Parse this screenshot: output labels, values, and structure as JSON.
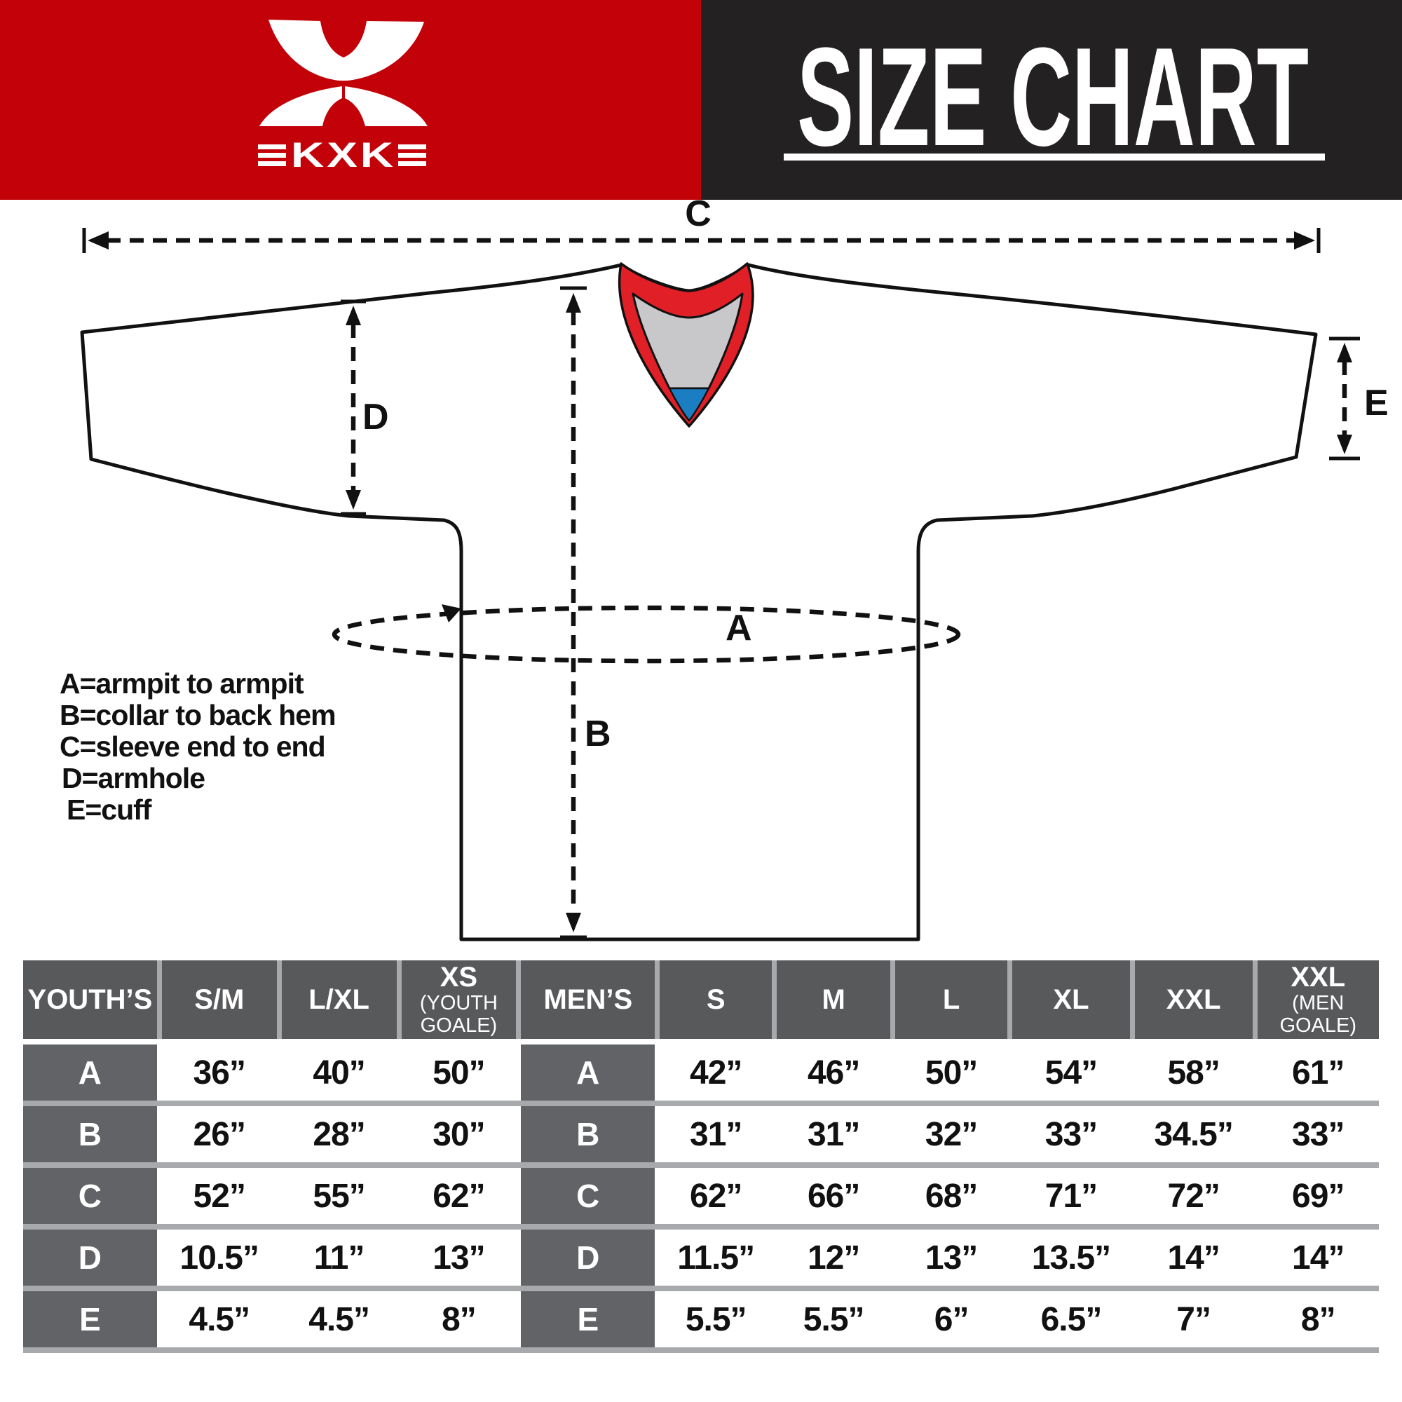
{
  "brand": {
    "logo_text": "KXK"
  },
  "title": "SIZE CHART",
  "colors": {
    "header_red": "#c30109",
    "header_black": "#232122",
    "collar_red": "#e01f26",
    "collar_gray": "#c8c8ca",
    "collar_blue": "#1b7ec2",
    "table_header_gray": "#58595b",
    "row_label_gray": "#626366",
    "separator_gray": "#a7a9ac"
  },
  "diagram": {
    "measure_labels": {
      "A": "A",
      "B": "B",
      "C": "C",
      "D": "D",
      "E": "E"
    },
    "legend": [
      "A=armpit to armpit",
      "B=collar to back hem",
      "C=sleeve end to end",
      "D=armhole",
      "E=cuff"
    ]
  },
  "table": {
    "columns": [
      {
        "main": "YOUTH’S",
        "sub": "",
        "type": "label"
      },
      {
        "main": "S/M",
        "sub": ""
      },
      {
        "main": "L/XL",
        "sub": ""
      },
      {
        "main": "XS",
        "sub": "(YOUTH\nGOALE)"
      },
      {
        "main": "MEN’S",
        "sub": "",
        "type": "label"
      },
      {
        "main": "S",
        "sub": ""
      },
      {
        "main": "M",
        "sub": ""
      },
      {
        "main": "L",
        "sub": ""
      },
      {
        "main": "XL",
        "sub": ""
      },
      {
        "main": "XXL",
        "sub": ""
      },
      {
        "main": "XXL",
        "sub": "(MEN\nGOALE)"
      }
    ],
    "rows": [
      {
        "letter": "A",
        "youth": [
          "36”",
          "40”",
          "50”"
        ],
        "men": [
          "42”",
          "46”",
          "50”",
          "54”",
          "58”",
          "61”"
        ]
      },
      {
        "letter": "B",
        "youth": [
          "26”",
          "28”",
          "30”"
        ],
        "men": [
          "31”",
          "31”",
          "32”",
          "33”",
          "34.5”",
          "33”"
        ]
      },
      {
        "letter": "C",
        "youth": [
          "52”",
          "55”",
          "62”"
        ],
        "men": [
          "62”",
          "66”",
          "68”",
          "71”",
          "72”",
          "69”"
        ]
      },
      {
        "letter": "D",
        "youth": [
          "10.5”",
          "11”",
          "13”"
        ],
        "men": [
          "11.5”",
          "12”",
          "13”",
          "13.5”",
          "14”",
          "14”"
        ]
      },
      {
        "letter": "E",
        "youth": [
          "4.5”",
          "4.5”",
          "8”"
        ],
        "men": [
          "5.5”",
          "5.5”",
          "6”",
          "6.5”",
          "7”",
          "8”"
        ]
      }
    ]
  }
}
